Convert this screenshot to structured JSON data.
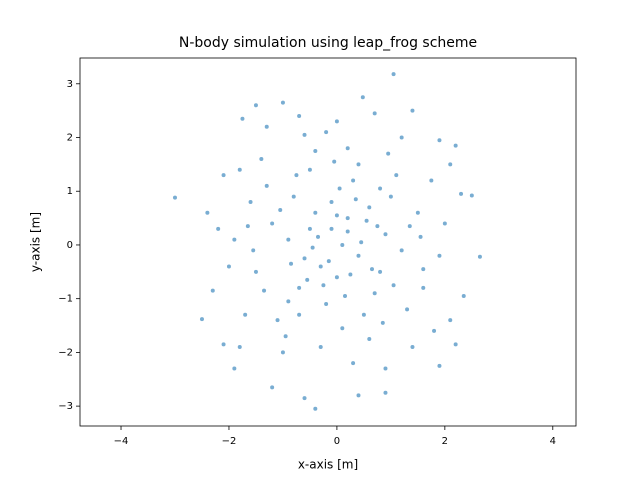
{
  "chart_data": {
    "type": "scatter",
    "title": "N-body simulation using leap_frog scheme",
    "x_label": "x-axis [m]",
    "y_label": "y-axis [m]",
    "color": "#1f77b4",
    "xlim": [
      -4.76,
      4.43
    ],
    "ylim": [
      -3.37,
      3.48
    ],
    "xticks": [
      {
        "value": -4,
        "label": "−4"
      },
      {
        "value": -2,
        "label": "−2"
      },
      0,
      2,
      4
    ],
    "yticks": [
      {
        "value": -3,
        "label": "−3"
      },
      {
        "value": -2,
        "label": "−2"
      },
      {
        "value": -1,
        "label": "−1"
      },
      0,
      1,
      2,
      3
    ],
    "x": [
      -3.0,
      1.05,
      2.65,
      -0.4,
      -2.5,
      0.48,
      -1.0,
      -1.5,
      -0.6,
      2.5,
      -2.2,
      -2.3,
      -2.1,
      -1.9,
      -1.2,
      0.4,
      0.9,
      1.9,
      2.2,
      2.35,
      2.3,
      2.2,
      1.9,
      1.4,
      0.7,
      0.0,
      -0.6,
      -1.3,
      -1.75,
      -1.8,
      -0.5,
      -0.3,
      0.2,
      0.4,
      0.1,
      -0.1,
      0.6,
      0.8,
      -0.7,
      -0.4,
      0.3,
      -0.2,
      0.9,
      -0.9,
      1.2,
      -1.2,
      0.5,
      -0.5,
      1.5,
      -1.5,
      1.1,
      -1.1,
      0.0,
      0.7,
      -0.8,
      1.6,
      -1.6,
      0.2,
      -0.3,
      1.0,
      -0.1,
      0.45,
      -0.6,
      0.25,
      -0.35,
      0.75,
      -0.85,
      0.05,
      0.15,
      -1.3,
      1.3,
      -1.7,
      1.75,
      0.95,
      -0.95,
      0.6,
      -0.4,
      1.9,
      -1.9,
      2.0,
      -2.0,
      0.3,
      -0.2,
      1.2,
      -1.0,
      1.4,
      -1.4,
      0.85,
      -0.75,
      1.55,
      -1.55,
      0.35,
      -0.55,
      0.65,
      -0.15,
      0.55,
      -0.45,
      0.0,
      -0.25,
      0.4,
      -0.7,
      1.05,
      -1.05,
      1.35,
      -1.35,
      2.1,
      -2.1,
      0.9,
      -0.7,
      1.8,
      -1.8,
      2.1,
      -2.4,
      0.1,
      -0.05,
      0.8,
      -0.9,
      1.6,
      -1.65,
      0.2
    ],
    "y": [
      0.88,
      3.18,
      -0.22,
      -3.05,
      -1.38,
      2.75,
      2.65,
      2.6,
      -2.85,
      0.92,
      0.3,
      -0.85,
      -1.85,
      -2.3,
      -2.65,
      -2.8,
      -2.75,
      -2.25,
      -1.85,
      -0.95,
      0.95,
      1.85,
      1.95,
      2.5,
      2.45,
      2.3,
      2.05,
      2.2,
      2.35,
      1.4,
      0.3,
      -0.4,
      0.5,
      -0.2,
      0.0,
      0.8,
      0.7,
      -0.5,
      -0.8,
      0.6,
      1.2,
      -1.1,
      0.2,
      0.1,
      -0.1,
      0.4,
      -1.3,
      1.4,
      0.6,
      -0.5,
      1.3,
      -1.4,
      -0.6,
      -0.9,
      0.9,
      -0.8,
      0.8,
      1.8,
      -1.9,
      0.9,
      0.3,
      0.05,
      -0.25,
      -0.55,
      0.15,
      0.35,
      -0.35,
      1.05,
      -0.95,
      1.1,
      -1.2,
      -1.3,
      1.2,
      1.7,
      -1.7,
      -1.75,
      1.75,
      -0.2,
      0.1,
      0.4,
      -0.4,
      -2.2,
      2.1,
      2.0,
      -2.0,
      -1.9,
      1.6,
      -1.45,
      1.3,
      0.15,
      -0.1,
      0.85,
      -0.65,
      -0.45,
      -0.3,
      0.45,
      -0.05,
      0.55,
      -0.75,
      1.5,
      -1.3,
      -0.75,
      0.65,
      0.35,
      -0.85,
      -1.4,
      1.3,
      -2.3,
      2.4,
      -1.6,
      -1.9,
      1.5,
      0.6,
      -1.55,
      1.55,
      1.05,
      -1.05,
      -0.45,
      0.35,
      0.25
    ]
  }
}
